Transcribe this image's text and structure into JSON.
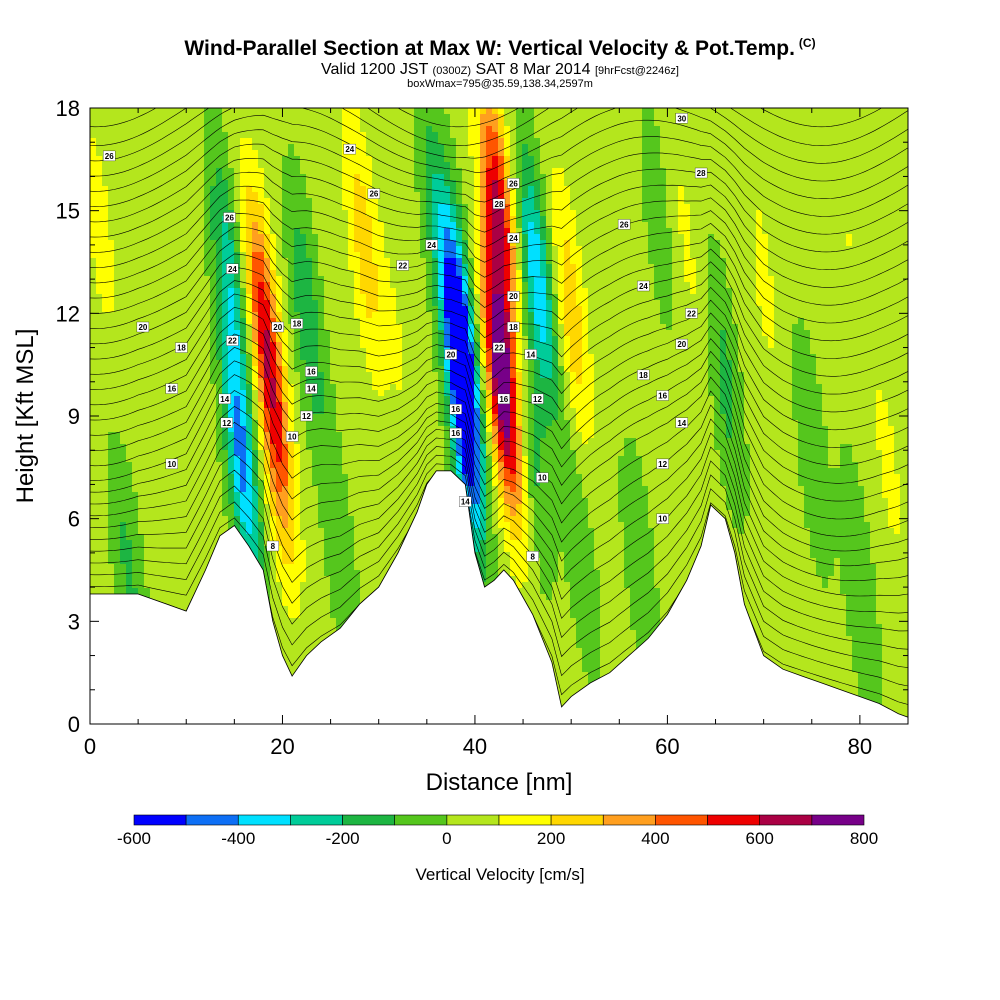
{
  "header": {
    "title_main": "Wind-Parallel Section at Max W: Vertical Velocity & Pot.Temp.",
    "title_mark": "(C)",
    "subtitle_a": "Valid 1200 JST",
    "subtitle_b": "(0300Z)",
    "subtitle_c": "SAT 8 Mar 2014",
    "subtitle_d": "[9hrFcst@2246z]",
    "subtitle2": "boxWmax=795@35.59,138.34,2597m"
  },
  "chart_data": {
    "type": "heatmap",
    "title": "Wind-Parallel Section at Max W: Vertical Velocity & Pot.Temp.",
    "xlabel": "Distance [nm]",
    "ylabel": "Height [Kft MSL]",
    "xlim": [
      0,
      85
    ],
    "ylim": [
      0,
      18
    ],
    "x_ticks": [
      0,
      20,
      40,
      60,
      80
    ],
    "y_ticks": [
      0,
      3,
      6,
      9,
      12,
      15,
      18
    ],
    "colorbar": {
      "label": "Vertical Velocity [cm/s]",
      "ticks": [
        -600,
        -400,
        -200,
        0,
        200,
        400,
        600,
        800
      ],
      "levels": [
        -600,
        -500,
        -400,
        -300,
        -200,
        -100,
        0,
        100,
        200,
        300,
        400,
        500,
        600,
        700,
        800
      ],
      "colors": [
        "#0000ff",
        "#0d6ff5",
        "#00e0ff",
        "#00cc99",
        "#1db542",
        "#55c61d",
        "#b4e61d",
        "#ffff00",
        "#ffd700",
        "#ff9f1f",
        "#ff5500",
        "#ee0000",
        "#aa0044",
        "#770088"
      ]
    },
    "terrain_kft": [
      [
        0,
        3.8
      ],
      [
        5,
        3.8
      ],
      [
        8,
        3.5
      ],
      [
        10,
        3.3
      ],
      [
        12,
        4.5
      ],
      [
        13.5,
        5.5
      ],
      [
        15,
        5.8
      ],
      [
        16.5,
        5.2
      ],
      [
        18,
        4.5
      ],
      [
        19,
        3.0
      ],
      [
        20,
        2.0
      ],
      [
        21,
        1.4
      ],
      [
        22.5,
        2.0
      ],
      [
        24,
        2.4
      ],
      [
        26,
        2.8
      ],
      [
        28,
        3.5
      ],
      [
        30,
        4.0
      ],
      [
        32,
        5.0
      ],
      [
        34,
        6.2
      ],
      [
        35,
        7.0
      ],
      [
        36,
        7.4
      ],
      [
        37.5,
        7.4
      ],
      [
        39,
        7.0
      ],
      [
        40,
        5.0
      ],
      [
        41,
        4.0
      ],
      [
        42,
        4.2
      ],
      [
        43,
        4.5
      ],
      [
        44,
        4.2
      ],
      [
        46,
        3.2
      ],
      [
        48,
        1.8
      ],
      [
        49,
        0.5
      ],
      [
        50,
        0.8
      ],
      [
        52,
        1.2
      ],
      [
        54,
        1.5
      ],
      [
        56,
        2.0
      ],
      [
        58,
        2.5
      ],
      [
        60,
        3.2
      ],
      [
        62,
        4.2
      ],
      [
        63.5,
        5.2
      ],
      [
        64.5,
        6.4
      ],
      [
        66,
        6.0
      ],
      [
        67,
        5.0
      ],
      [
        68,
        3.5
      ],
      [
        70,
        2.0
      ],
      [
        72,
        1.6
      ],
      [
        74,
        1.4
      ],
      [
        76,
        1.2
      ],
      [
        78,
        1.0
      ],
      [
        80,
        0.8
      ],
      [
        82,
        0.6
      ],
      [
        84,
        0.3
      ],
      [
        85,
        0.2
      ]
    ],
    "velocity_features": [
      {
        "x": 1,
        "y": 14.5,
        "w": 100
      },
      {
        "x": 4,
        "y": 4.5,
        "w": -160
      },
      {
        "x": 8,
        "y": 12,
        "w": 0
      },
      {
        "x": 14.5,
        "y": 13,
        "w": -300
      },
      {
        "x": 15.8,
        "y": 7.5,
        "w": -450
      },
      {
        "x": 18,
        "y": 12,
        "w": 430
      },
      {
        "x": 19.5,
        "y": 8,
        "w": 350
      },
      {
        "x": 22.5,
        "y": 12,
        "w": -220
      },
      {
        "x": 26,
        "y": 5,
        "w": -120
      },
      {
        "x": 28.5,
        "y": 14,
        "w": 220
      },
      {
        "x": 32,
        "y": 11,
        "w": 60
      },
      {
        "x": 36,
        "y": 15,
        "w": -180
      },
      {
        "x": 38.5,
        "y": 11.5,
        "w": -560
      },
      {
        "x": 39,
        "y": 8.5,
        "w": -520
      },
      {
        "x": 42.5,
        "y": 15,
        "w": 560
      },
      {
        "x": 42.8,
        "y": 10,
        "w": 800
      },
      {
        "x": 46.5,
        "y": 13,
        "w": -420
      },
      {
        "x": 46,
        "y": 8,
        "w": -170
      },
      {
        "x": 50,
        "y": 12,
        "w": 230
      },
      {
        "x": 51,
        "y": 5,
        "w": -130
      },
      {
        "x": 55,
        "y": 10,
        "w": 20
      },
      {
        "x": 57,
        "y": 5,
        "w": -130
      },
      {
        "x": 59,
        "y": 15,
        "w": -100
      },
      {
        "x": 62,
        "y": 14,
        "w": 80
      },
      {
        "x": 66,
        "y": 10,
        "w": -170
      },
      {
        "x": 70,
        "y": 13,
        "w": 80
      },
      {
        "x": 75,
        "y": 8,
        "w": -120
      },
      {
        "x": 79,
        "y": 14,
        "w": 60
      },
      {
        "x": 83,
        "y": 7.5,
        "w": 80
      },
      {
        "x": 80,
        "y": 4,
        "w": -140
      }
    ],
    "potential_temperature_labels": [
      {
        "x": 2,
        "y": 16.6,
        "v": "26"
      },
      {
        "x": 5.5,
        "y": 11.6,
        "v": "20"
      },
      {
        "x": 9.5,
        "y": 11.0,
        "v": "18"
      },
      {
        "x": 8.5,
        "y": 9.8,
        "v": "16"
      },
      {
        "x": 8.5,
        "y": 7.6,
        "v": "10"
      },
      {
        "x": 14.5,
        "y": 14.8,
        "v": "26"
      },
      {
        "x": 14.8,
        "y": 13.3,
        "v": "24"
      },
      {
        "x": 14.0,
        "y": 9.5,
        "v": "14"
      },
      {
        "x": 14.2,
        "y": 8.8,
        "v": "12"
      },
      {
        "x": 14.8,
        "y": 11.2,
        "v": "22"
      },
      {
        "x": 19.5,
        "y": 11.6,
        "v": "20"
      },
      {
        "x": 21.5,
        "y": 11.7,
        "v": "18"
      },
      {
        "x": 23,
        "y": 10.3,
        "v": "16"
      },
      {
        "x": 23,
        "y": 9.8,
        "v": "14"
      },
      {
        "x": 22.5,
        "y": 9.0,
        "v": "12"
      },
      {
        "x": 21,
        "y": 8.4,
        "v": "10"
      },
      {
        "x": 19,
        "y": 5.2,
        "v": "8"
      },
      {
        "x": 27,
        "y": 16.8,
        "v": "24"
      },
      {
        "x": 29.5,
        "y": 15.5,
        "v": "26"
      },
      {
        "x": 32.5,
        "y": 13.4,
        "v": "22"
      },
      {
        "x": 35.5,
        "y": 14.0,
        "v": "24"
      },
      {
        "x": 37.5,
        "y": 10.8,
        "v": "20"
      },
      {
        "x": 38,
        "y": 9.2,
        "v": "16"
      },
      {
        "x": 38,
        "y": 8.5,
        "v": "16"
      },
      {
        "x": 39,
        "y": 6.5,
        "v": "14"
      },
      {
        "x": 42.5,
        "y": 15.2,
        "v": "28"
      },
      {
        "x": 44,
        "y": 15.8,
        "v": "26"
      },
      {
        "x": 44,
        "y": 14.2,
        "v": "24"
      },
      {
        "x": 44,
        "y": 12.5,
        "v": "20"
      },
      {
        "x": 44,
        "y": 11.6,
        "v": "18"
      },
      {
        "x": 42.5,
        "y": 11.0,
        "v": "22"
      },
      {
        "x": 43,
        "y": 9.5,
        "v": "16"
      },
      {
        "x": 45.8,
        "y": 10.8,
        "v": "14"
      },
      {
        "x": 46.5,
        "y": 9.5,
        "v": "12"
      },
      {
        "x": 47,
        "y": 7.2,
        "v": "10"
      },
      {
        "x": 46,
        "y": 4.9,
        "v": "8"
      },
      {
        "x": 61.5,
        "y": 17.7,
        "v": "30"
      },
      {
        "x": 63.5,
        "y": 16.1,
        "v": "28"
      },
      {
        "x": 55.5,
        "y": 14.6,
        "v": "26"
      },
      {
        "x": 57.5,
        "y": 12.8,
        "v": "24"
      },
      {
        "x": 62.5,
        "y": 12.0,
        "v": "22"
      },
      {
        "x": 61.5,
        "y": 11.1,
        "v": "20"
      },
      {
        "x": 57.5,
        "y": 10.2,
        "v": "18"
      },
      {
        "x": 59.5,
        "y": 9.6,
        "v": "16"
      },
      {
        "x": 61.5,
        "y": 8.8,
        "v": "14"
      },
      {
        "x": 59.5,
        "y": 7.6,
        "v": "12"
      },
      {
        "x": 59.5,
        "y": 6.0,
        "v": "10"
      }
    ]
  }
}
